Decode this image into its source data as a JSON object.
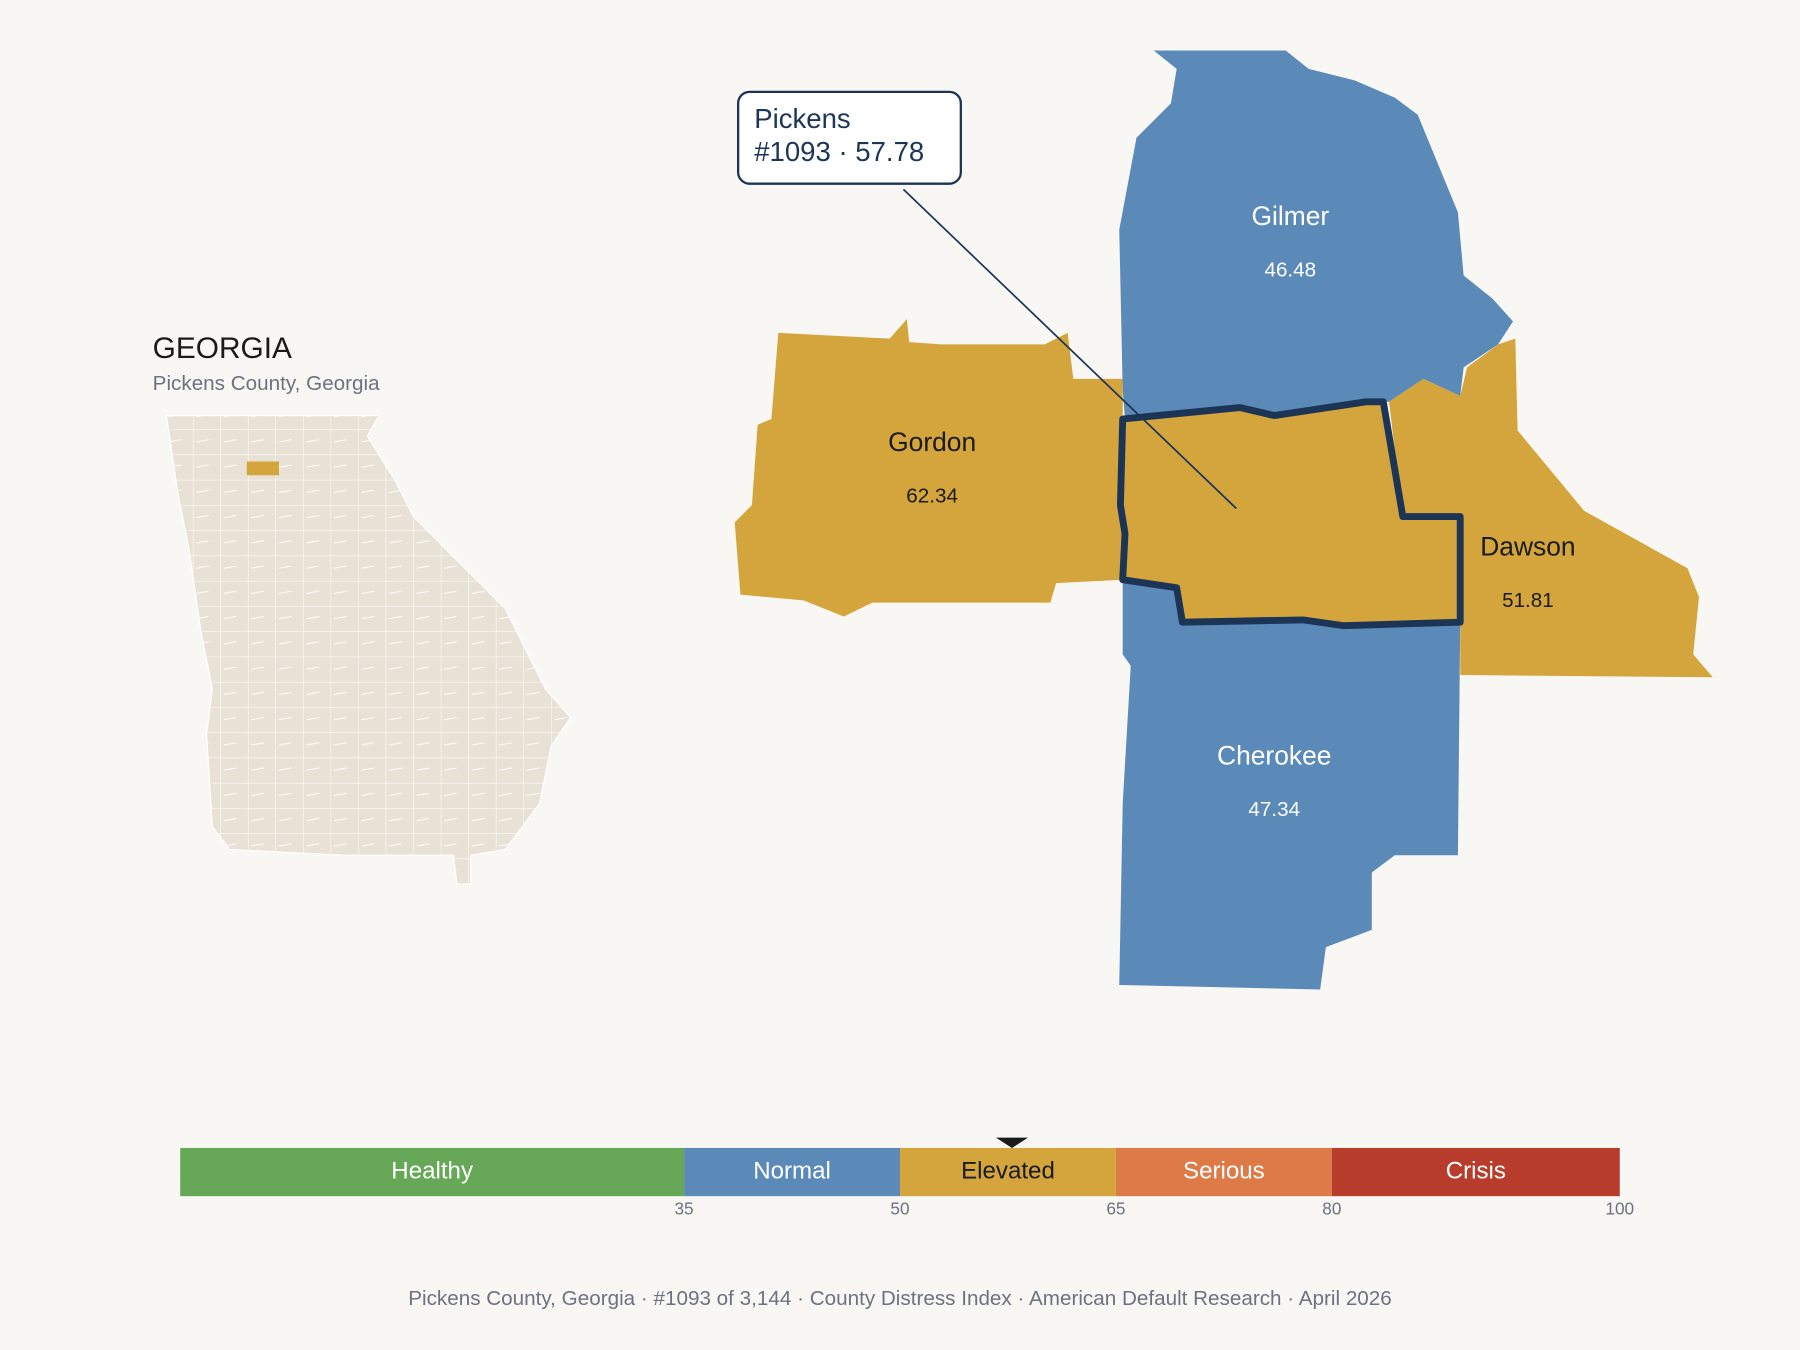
{
  "inset": {
    "title": "GEORGIA",
    "subtitle": "Pickens County, Georgia"
  },
  "callout": {
    "name": "Pickens",
    "label": "#1093 · 57.78",
    "value": 57.78
  },
  "counties": [
    {
      "name": "Gilmer",
      "value": 46.48
    },
    {
      "name": "Gordon",
      "value": 62.34
    },
    {
      "name": "Dawson",
      "value": 51.81
    },
    {
      "name": "Cherokee",
      "value": 47.34
    }
  ],
  "scale": {
    "lim": [
      0,
      100
    ],
    "ticks": [
      35,
      50,
      65,
      80,
      100
    ],
    "bands": [
      {
        "label": "Healthy",
        "color": "#67a758",
        "text_color": "#ffffff"
      },
      {
        "label": "Normal",
        "color": "#5b8ab9",
        "text_color": "#ffffff"
      },
      {
        "label": "Elevated",
        "color": "#d4a53c",
        "text_color": "#1a1a1a"
      },
      {
        "label": "Serious",
        "color": "#dd7a48",
        "text_color": "#ffffff"
      },
      {
        "label": "Crisis",
        "color": "#b83c2c",
        "text_color": "#ffffff"
      }
    ]
  },
  "footer": "Pickens County, Georgia  ·  #1093 of 3,144  ·  County Distress Index  ·  American Default Research  ·  April 2026"
}
